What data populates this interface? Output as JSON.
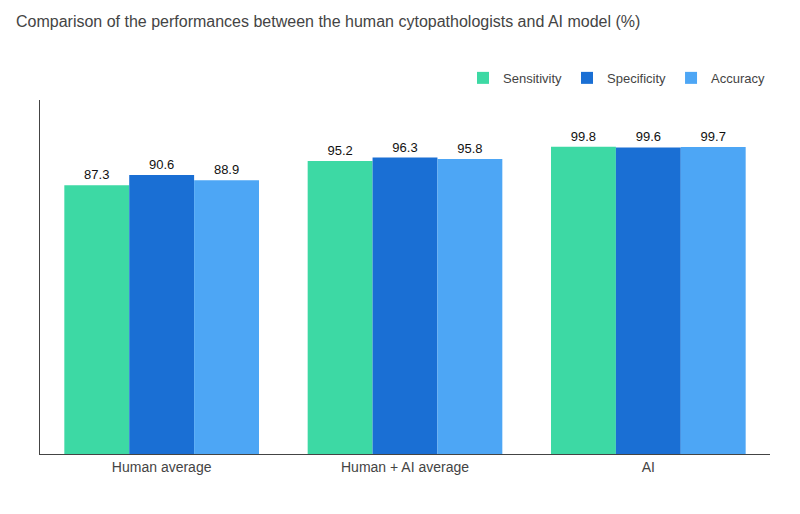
{
  "chart_data": {
    "type": "bar",
    "title": "Comparison of the performances between the human cytopathologists and AI model (%)",
    "categories": [
      "Human average",
      "Human + AI average",
      "AI"
    ],
    "series": [
      {
        "name": "Sensitivity",
        "color": "#3dd9a4",
        "values": [
          87.3,
          95.2,
          99.8
        ]
      },
      {
        "name": "Specificity",
        "color": "#1a6fd4",
        "values": [
          90.6,
          96.3,
          99.6
        ]
      },
      {
        "name": "Accuracy",
        "color": "#4da6f5",
        "values": [
          88.9,
          95.8,
          99.7
        ]
      }
    ],
    "ylim": [
      0,
      115
    ],
    "data_labels": true,
    "tick_labels": "x",
    "grid": false,
    "legend": "upper right"
  }
}
